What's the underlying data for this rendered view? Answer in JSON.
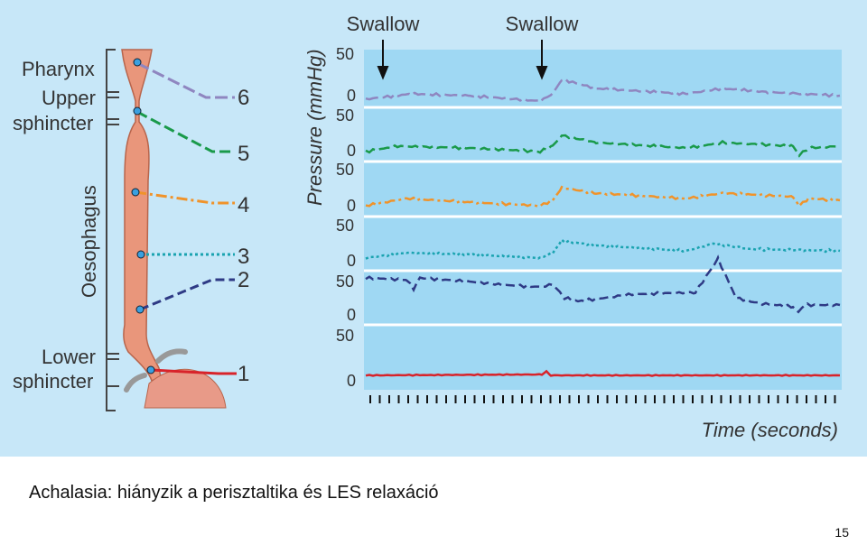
{
  "labels": {
    "pharynx": "Pharynx",
    "upper_sphincter": [
      "Upper",
      "sphincter"
    ],
    "oesophagus": "Oesophagus",
    "lower_sphincter": [
      "Lower",
      "sphincter"
    ]
  },
  "channels": [
    6,
    5,
    4,
    3,
    2,
    1
  ],
  "swallow": [
    "Swallow",
    "Swallow"
  ],
  "y_axis_label": "Pressure (mmHg)",
  "panels": [
    {
      "top": 50,
      "bottom": 0
    },
    {
      "top": 50,
      "bottom": 0
    },
    {
      "top": 50,
      "bottom": 0
    },
    {
      "top": 50,
      "bottom": 0
    },
    {
      "top": 50,
      "bottom": 0
    },
    {
      "top": 50,
      "bottom": 0
    }
  ],
  "x_axis_label": "Time (seconds)",
  "caption": "Achalasia: hiányzik a perisztaltika és LES relaxáció",
  "page_number": "15"
}
